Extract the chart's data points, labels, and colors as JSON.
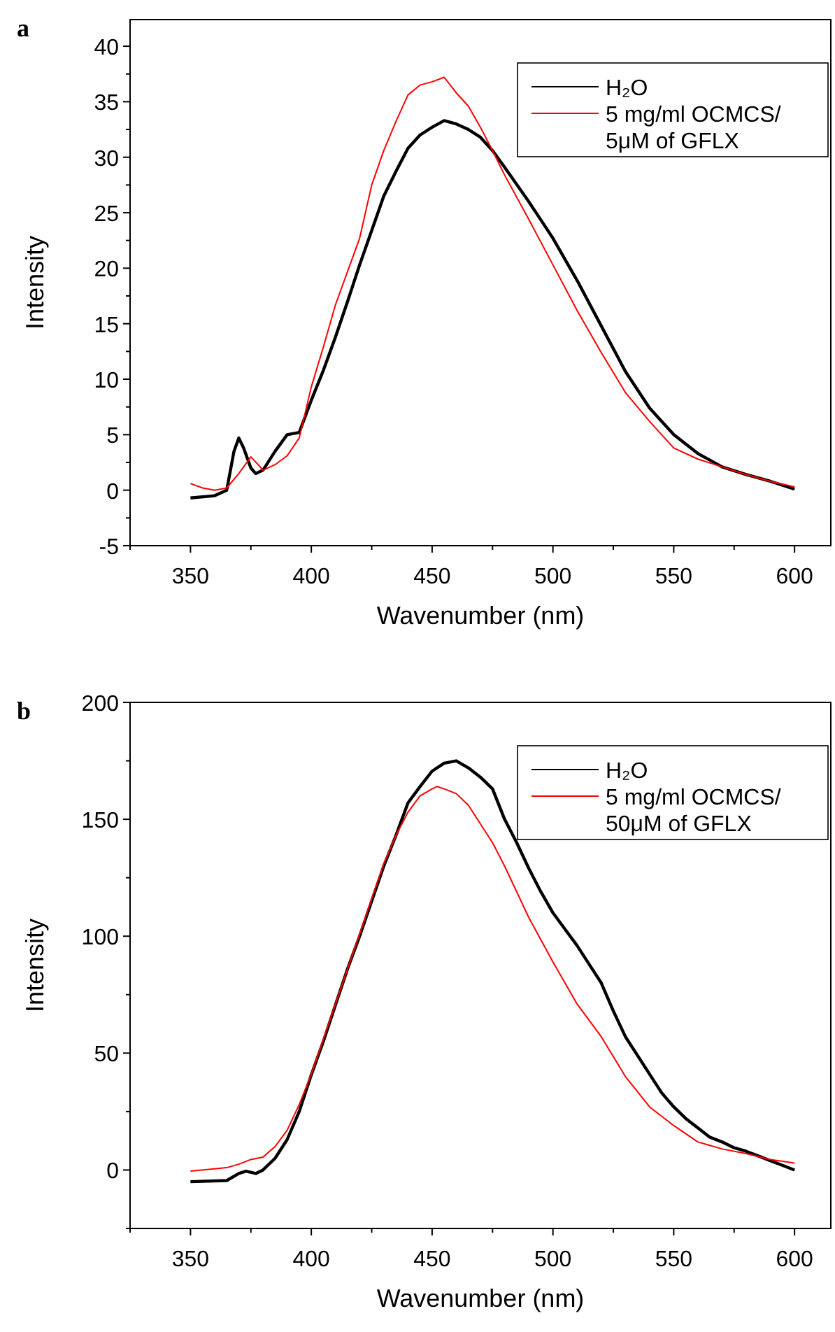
{
  "chart_data": [
    {
      "type": "line",
      "xlabel": "Wavenumber (nm)",
      "ylabel": "Intensity",
      "annotations": [
        "a"
      ],
      "xlim": [
        325,
        615
      ],
      "ylim": [
        -5,
        42.4
      ],
      "xticks": [
        {
          "value": 325,
          "label": null
        },
        350,
        {
          "value": 375,
          "label": null
        },
        400,
        {
          "value": 425,
          "label": null
        },
        450,
        {
          "value": 475,
          "label": null
        },
        500,
        {
          "value": 525,
          "label": null
        },
        550,
        {
          "value": 575,
          "label": null
        },
        600
      ],
      "yticks": [
        -5,
        {
          "value": -2.5,
          "label": null
        },
        0,
        {
          "value": 2.5,
          "label": null
        },
        5,
        {
          "value": 7.5,
          "label": null
        },
        10,
        {
          "value": 12.5,
          "label": null
        },
        15,
        {
          "value": 17.5,
          "label": null
        },
        20,
        {
          "value": 22.5,
          "label": null
        },
        25,
        {
          "value": 27.5,
          "label": null
        },
        30,
        {
          "value": 32.5,
          "label": null
        },
        35,
        {
          "value": 37.5,
          "label": null
        },
        40
      ],
      "legend": "top right",
      "grid": false,
      "marker": "none",
      "line_style": "solid",
      "series": [
        {
          "name": "H₂O",
          "color": "#000000",
          "x": [
            350,
            360,
            365,
            368,
            370,
            372,
            375,
            377,
            380,
            385,
            390,
            395,
            400,
            405,
            410,
            415,
            420,
            425,
            430,
            435,
            440,
            445,
            450,
            455,
            460,
            465,
            470,
            475,
            480,
            490,
            500,
            510,
            520,
            530,
            540,
            550,
            560,
            570,
            580,
            590,
            600
          ],
          "values": [
            -0.7,
            -0.5,
            0,
            3.5,
            4.7,
            3.8,
            2,
            1.5,
            1.8,
            3.5,
            5,
            5.2,
            8.1,
            10.8,
            13.8,
            17,
            20.3,
            23.4,
            26.5,
            28.7,
            30.8,
            32,
            32.7,
            33.3,
            33,
            32.5,
            31.8,
            30.6,
            29.1,
            26,
            22.7,
            18.9,
            14.8,
            10.7,
            7.4,
            5,
            3.3,
            2.1,
            1.4,
            0.8,
            0.1
          ]
        },
        {
          "name": "5 mg/ml OCMCS/ 5μM of GFLX",
          "color": "#ff0000",
          "x": [
            350,
            355,
            360,
            365,
            370,
            375,
            378,
            380,
            385,
            390,
            395,
            400,
            405,
            410,
            415,
            420,
            425,
            430,
            435,
            440,
            445,
            450,
            455,
            460,
            465,
            470,
            475,
            480,
            490,
            500,
            510,
            520,
            530,
            540,
            550,
            560,
            570,
            580,
            590,
            600
          ],
          "values": [
            0.6,
            0.2,
            0,
            0.2,
            1.5,
            3,
            2.3,
            1.8,
            2.3,
            3.1,
            4.7,
            9.3,
            12.9,
            16.7,
            19.7,
            22.7,
            27.5,
            30.6,
            33.2,
            35.6,
            36.5,
            36.8,
            37.2,
            35.8,
            34.6,
            32.7,
            30.6,
            28.4,
            24.4,
            20.3,
            16.2,
            12.4,
            8.8,
            6.2,
            3.8,
            2.8,
            2.1,
            1.4,
            0.8,
            0.3
          ]
        }
      ]
    },
    {
      "type": "line",
      "xlabel": "Wavenumber (nm)",
      "ylabel": "Intensity",
      "annotations": [
        "b"
      ],
      "xlim": [
        325,
        615
      ],
      "ylim": [
        -25,
        200
      ],
      "xticks": [
        {
          "value": 325,
          "label": null
        },
        350,
        {
          "value": 375,
          "label": null
        },
        400,
        {
          "value": 425,
          "label": null
        },
        450,
        {
          "value": 475,
          "label": null
        },
        500,
        {
          "value": 525,
          "label": null
        },
        550,
        {
          "value": 575,
          "label": null
        },
        600
      ],
      "yticks": [
        {
          "value": -25,
          "label": null
        },
        0,
        {
          "value": 25,
          "label": null
        },
        50,
        {
          "value": 75,
          "label": null
        },
        100,
        {
          "value": 125,
          "label": null
        },
        150,
        {
          "value": 175,
          "label": null
        },
        200
      ],
      "legend": "top right",
      "grid": false,
      "marker": "none",
      "line_style": "solid",
      "series": [
        {
          "name": "H₂O",
          "color": "#000000",
          "x": [
            350,
            365,
            370,
            373,
            377,
            380,
            385,
            390,
            395,
            400,
            405,
            410,
            415,
            420,
            425,
            430,
            435,
            440,
            445,
            450,
            455,
            460,
            465,
            470,
            475,
            480,
            485,
            490,
            495,
            500,
            505,
            510,
            515,
            520,
            525,
            530,
            535,
            540,
            545,
            550,
            555,
            560,
            565,
            570,
            575,
            580,
            585,
            590,
            595,
            600
          ],
          "values": [
            -5,
            -4.5,
            -1.5,
            -0.5,
            -1.5,
            0,
            5,
            13,
            25,
            40.7,
            55,
            70.6,
            86,
            100,
            115,
            130,
            143,
            157,
            164,
            170.6,
            174,
            175,
            172,
            168,
            163,
            150,
            140,
            129,
            119,
            110,
            103,
            96,
            88,
            80,
            68,
            57,
            49,
            41,
            33,
            27,
            22,
            18,
            14,
            12,
            9.5,
            8,
            6,
            4,
            2,
            0
          ]
        },
        {
          "name": "5 mg/ml OCMCS/ 50μM of GFLX",
          "color": "#ff0000",
          "x": [
            350,
            360,
            365,
            370,
            375,
            380,
            385,
            390,
            395,
            400,
            410,
            420,
            430,
            435,
            440,
            445,
            450,
            452,
            455,
            460,
            465,
            470,
            475,
            480,
            490,
            500,
            510,
            520,
            530,
            540,
            550,
            560,
            570,
            580,
            590,
            600
          ],
          "values": [
            -0.5,
            0.5,
            1,
            2.5,
            4.5,
            5.5,
            10,
            17,
            28,
            41,
            71,
            101,
            131,
            143,
            153,
            160,
            163,
            164,
            163,
            161,
            156,
            148,
            140,
            130,
            108,
            89,
            71,
            57,
            40,
            27,
            19,
            12,
            9,
            7,
            4.5,
            3
          ]
        }
      ]
    }
  ]
}
